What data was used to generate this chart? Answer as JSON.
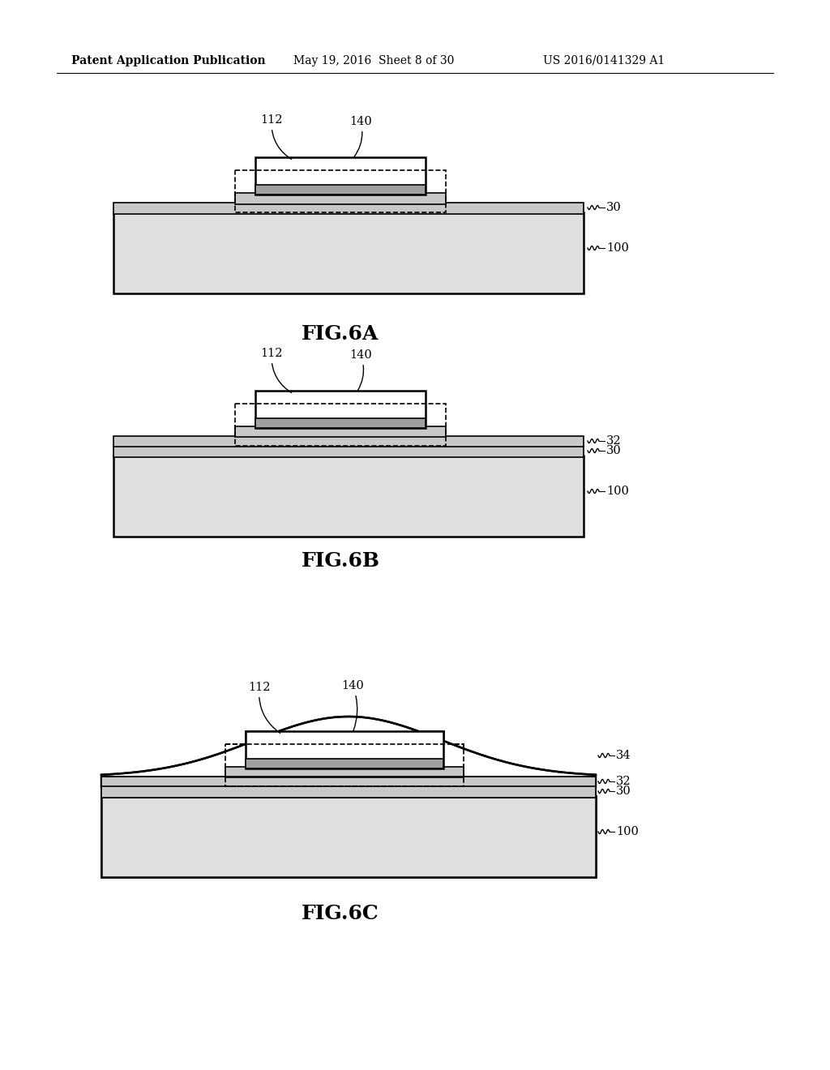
{
  "bg_color": "#ffffff",
  "line_color": "#000000",
  "header_line1": "Patent Application Publication",
  "header_line2": "May 19, 2016  Sheet 8 of 30",
  "header_line3": "US 2016/0141329 A1",
  "fig_labels": [
    "FIG.6A",
    "FIG.6B",
    "FIG.6C"
  ],
  "lw_main": 1.8,
  "lw_thin": 1.2,
  "gray_substrate": "#e0e0e0",
  "gray_layer": "#c8c8c8",
  "gray_dark": "#a0a0a0",
  "white": "#ffffff"
}
